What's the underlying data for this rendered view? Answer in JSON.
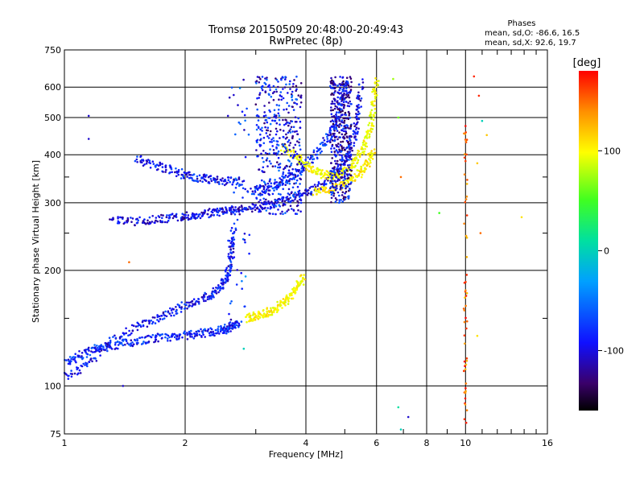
{
  "chart_data": {
    "type": "scatter",
    "title_line1": "Tromsø 20150509 20:48:00-20:49:43",
    "title_line2": "RwPretec (8p)",
    "phases": {
      "heading": "Phases",
      "o_line": "mean, sd,O: -86.6, 16.5",
      "x_line": "mean, sd,X:  92.6, 19.7"
    },
    "xlabel": "Frequency [MHz]",
    "ylabel": "Stationary phase Virtual Height [km]",
    "x_scale": "log",
    "y_scale": "log",
    "xlim": [
      1,
      16
    ],
    "ylim": [
      75,
      750
    ],
    "x_ticks": [
      1,
      2,
      4,
      6,
      8,
      10,
      16
    ],
    "y_ticks": [
      75,
      100,
      200,
      300,
      400,
      500,
      600,
      750
    ],
    "grid": true,
    "colorbar": {
      "label": "[deg]",
      "range": [
        -160,
        180
      ],
      "ticks": [
        100,
        0,
        -100
      ]
    },
    "traces": [
      {
        "name_hint": "o-mode low E/F1 trace",
        "phase": -95,
        "points": [
          [
            1.0,
            115
          ],
          [
            1.1,
            120
          ],
          [
            1.2,
            125
          ],
          [
            1.35,
            128
          ],
          [
            1.5,
            131
          ],
          [
            1.7,
            133
          ],
          [
            1.9,
            135
          ],
          [
            2.1,
            136
          ],
          [
            2.3,
            138
          ],
          [
            2.5,
            140
          ],
          [
            2.6,
            143
          ],
          [
            2.7,
            146
          ]
        ]
      },
      {
        "name_hint": "o-mode low upper branch",
        "phase": -100,
        "points": [
          [
            1.0,
            105
          ],
          [
            1.15,
            115
          ],
          [
            1.3,
            130
          ],
          [
            1.5,
            142
          ],
          [
            1.7,
            150
          ],
          [
            1.9,
            158
          ],
          [
            2.1,
            165
          ],
          [
            2.3,
            172
          ],
          [
            2.45,
            180
          ],
          [
            2.55,
            195
          ],
          [
            2.6,
            220
          ],
          [
            2.65,
            260
          ]
        ]
      },
      {
        "name_hint": "o-mode F trace",
        "phase": -105,
        "points": [
          [
            1.3,
            270
          ],
          [
            1.5,
            268
          ],
          [
            1.7,
            272
          ],
          [
            1.9,
            275
          ],
          [
            2.1,
            278
          ],
          [
            2.3,
            282
          ],
          [
            2.5,
            285
          ],
          [
            2.7,
            287
          ],
          [
            3.0,
            292
          ],
          [
            3.3,
            298
          ],
          [
            3.6,
            305
          ],
          [
            4.0,
            318
          ],
          [
            4.4,
            335
          ],
          [
            4.8,
            365
          ],
          [
            5.1,
            400
          ],
          [
            5.3,
            450
          ],
          [
            5.4,
            520
          ],
          [
            5.5,
            620
          ]
        ]
      },
      {
        "name_hint": "o-mode oblique F trace",
        "phase": -100,
        "points": [
          [
            1.5,
            390
          ],
          [
            1.7,
            375
          ],
          [
            1.9,
            360
          ],
          [
            2.1,
            350
          ],
          [
            2.3,
            345
          ],
          [
            2.5,
            342
          ],
          [
            2.8,
            340
          ]
        ]
      },
      {
        "name_hint": "o-mode second hop",
        "phase": -95,
        "points": [
          [
            2.9,
            320
          ],
          [
            3.2,
            328
          ],
          [
            3.5,
            340
          ],
          [
            3.8,
            360
          ],
          [
            4.1,
            385
          ],
          [
            4.4,
            420
          ],
          [
            4.7,
            470
          ],
          [
            4.9,
            540
          ],
          [
            5.0,
            620
          ]
        ]
      },
      {
        "name_hint": "x-mode low trace",
        "phase": 100,
        "points": [
          [
            2.85,
            150
          ],
          [
            3.0,
            152
          ],
          [
            3.2,
            155
          ],
          [
            3.4,
            160
          ],
          [
            3.6,
            168
          ],
          [
            3.8,
            180
          ],
          [
            3.95,
            192
          ]
        ]
      },
      {
        "name_hint": "x-mode F trace",
        "phase": 95,
        "points": [
          [
            3.5,
            420
          ],
          [
            3.8,
            395
          ],
          [
            4.1,
            370
          ],
          [
            4.4,
            355
          ],
          [
            4.7,
            350
          ],
          [
            5.0,
            360
          ],
          [
            5.3,
            385
          ],
          [
            5.6,
            420
          ],
          [
            5.8,
            470
          ],
          [
            5.9,
            540
          ],
          [
            6.0,
            630
          ]
        ]
      },
      {
        "name_hint": "x-mode F lower",
        "phase": 105,
        "points": [
          [
            4.2,
            320
          ],
          [
            4.6,
            325
          ],
          [
            5.0,
            335
          ],
          [
            5.4,
            355
          ],
          [
            5.7,
            380
          ],
          [
            5.9,
            410
          ]
        ]
      }
    ],
    "vertical_bands": [
      {
        "name_hint": "spread band 2.6-2.9 MHz",
        "phase": -90,
        "x_range": [
          2.55,
          2.9
        ],
        "y_range": [
          140,
          640
        ]
      },
      {
        "name_hint": "spread band 3.0-4.0 MHz",
        "phase": -100,
        "x_range": [
          3.0,
          3.9
        ],
        "y_range": [
          280,
          640
        ]
      },
      {
        "name_hint": "spread band 4.6-5.2 MHz",
        "phase": -110,
        "x_range": [
          4.6,
          5.2
        ],
        "y_range": [
          300,
          640
        ]
      },
      {
        "name_hint": "interference 10 MHz",
        "phase": 150,
        "x_range": [
          9.9,
          10.1
        ],
        "y_range": [
          80,
          500
        ]
      }
    ],
    "scatter_noise": [
      {
        "x": 1.15,
        "y": 505,
        "phase": -110
      },
      {
        "x": 1.15,
        "y": 440,
        "phase": -110
      },
      {
        "x": 1.4,
        "y": 100,
        "phase": -110
      },
      {
        "x": 1.45,
        "y": 210,
        "phase": 150
      },
      {
        "x": 6.6,
        "y": 630,
        "phase": 60
      },
      {
        "x": 6.8,
        "y": 500,
        "phase": 40
      },
      {
        "x": 6.9,
        "y": 350,
        "phase": 150
      },
      {
        "x": 6.8,
        "y": 88,
        "phase": -20
      },
      {
        "x": 7.2,
        "y": 83,
        "phase": -110
      },
      {
        "x": 8.6,
        "y": 282,
        "phase": 20
      },
      {
        "x": 10.5,
        "y": 640,
        "phase": 170
      },
      {
        "x": 10.8,
        "y": 570,
        "phase": 170
      },
      {
        "x": 11.0,
        "y": 490,
        "phase": -30
      },
      {
        "x": 11.3,
        "y": 450,
        "phase": 120
      },
      {
        "x": 10.7,
        "y": 380,
        "phase": 120
      },
      {
        "x": 10.9,
        "y": 250,
        "phase": 150
      },
      {
        "x": 13.8,
        "y": 275,
        "phase": 110
      },
      {
        "x": 10.7,
        "y": 135,
        "phase": 110
      },
      {
        "x": 6.9,
        "y": 77,
        "phase": -30
      },
      {
        "x": 2.8,
        "y": 125,
        "phase": -30
      }
    ]
  }
}
